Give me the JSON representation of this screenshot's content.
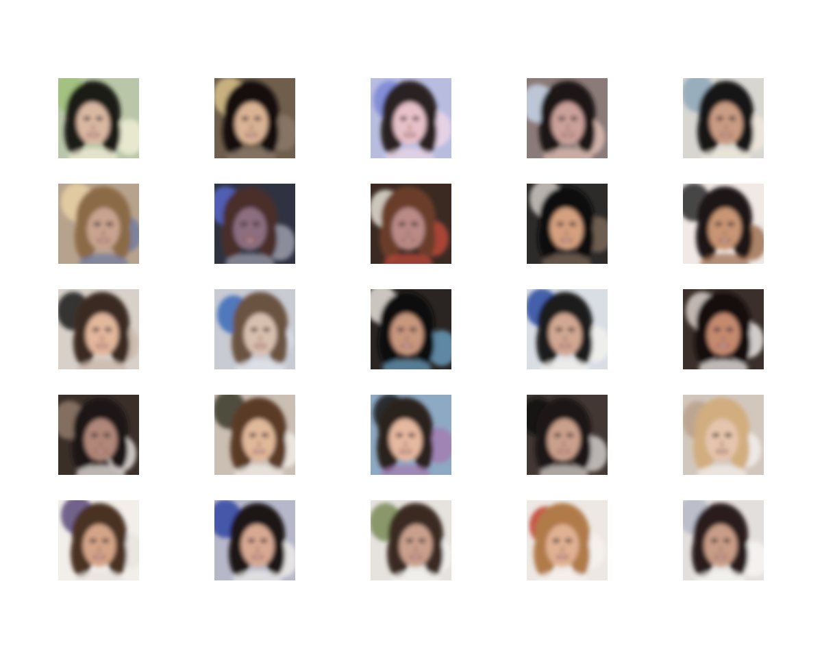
{
  "grid": {
    "rows": 5,
    "columns": 5,
    "tiles": [
      {
        "bg": "#b9c7a8",
        "hair": "#1c1a16",
        "skin": "#d9b8a2",
        "accent": "#9fbf7a",
        "accent2": "#f3f0d8"
      },
      {
        "bg": "#6e5e4b",
        "hair": "#121110",
        "skin": "#d9b394",
        "accent": "#d7c08a",
        "accent2": "#8c7b6b"
      },
      {
        "bg": "#b8bde0",
        "hair": "#2a2424",
        "skin": "#e6c1c9",
        "accent": "#7a86d6",
        "accent2": "#f0d7e6"
      },
      {
        "bg": "#8a7a78",
        "hair": "#1e1817",
        "skin": "#caa09a",
        "accent": "#c6d3e6",
        "accent2": "#e2c0b6"
      },
      {
        "bg": "#d7d6d1",
        "hair": "#151515",
        "skin": "#c99c83",
        "accent": "#8ea7b8",
        "accent2": "#f1e9dc"
      },
      {
        "bg": "#b7a38d",
        "hair": "#8b6a46",
        "skin": "#c8a38f",
        "accent": "#e9d0a4",
        "accent2": "#6d7aa3"
      },
      {
        "bg": "#2f3341",
        "hair": "#4a2f2c",
        "skin": "#8c6e7f",
        "accent": "#5566c8",
        "accent2": "#a2a4b2"
      },
      {
        "bg": "#3a2a22",
        "hair": "#6b3d2b",
        "skin": "#b98a86",
        "accent": "#e6e2d6",
        "accent2": "#c44a3c"
      },
      {
        "bg": "#2d2a2a",
        "hair": "#0e0c0c",
        "skin": "#d4a07f",
        "accent": "#cfcac4",
        "accent2": "#7d6a5a"
      },
      {
        "bg": "#f0e9e6",
        "hair": "#1b1413",
        "skin": "#c89575",
        "accent": "#2a2a2a",
        "accent2": "#9a6a4a"
      },
      {
        "bg": "#d8d1ca",
        "hair": "#3b2a20",
        "skin": "#e2b79c",
        "accent": "#1a1614",
        "accent2": "#c9b7a9"
      },
      {
        "bg": "#c9cbd3",
        "hair": "#6b5340",
        "skin": "#d8c0b0",
        "accent": "#3b6ab8",
        "accent2": "#e6e7ee"
      },
      {
        "bg": "#2a2523",
        "hair": "#0f0c0b",
        "skin": "#c7977e",
        "accent": "#e7e2da",
        "accent2": "#6aa0c3"
      },
      {
        "bg": "#d9dde4",
        "hair": "#1e1b1b",
        "skin": "#d1a893",
        "accent": "#2b4aa0",
        "accent2": "#f4f2ee"
      },
      {
        "bg": "#3a2f2b",
        "hair": "#120f0e",
        "skin": "#c48a6f",
        "accent": "#d8cfc9",
        "accent2": "#f6f4f2"
      },
      {
        "bg": "#3a2e29",
        "hair": "#1a1412",
        "skin": "#b08779",
        "accent": "#8f7a6a",
        "accent2": "#f1eeeb"
      },
      {
        "bg": "#cbbfb3",
        "hair": "#5a3b25",
        "skin": "#e0b89a",
        "accent": "#3b3a2a",
        "accent2": "#f2efe9"
      },
      {
        "bg": "#8ea9c4",
        "hair": "#2a201b",
        "skin": "#e5b89f",
        "accent": "#1a1a1a",
        "accent2": "#a47bb0"
      },
      {
        "bg": "#423733",
        "hair": "#1a1515",
        "skin": "#c9a08c",
        "accent": "#0d0c0c",
        "accent2": "#d8d5d2"
      },
      {
        "bg": "#d2c7bd",
        "hair": "#d1ad7f",
        "skin": "#e5c5ad",
        "accent": "#b9a08a",
        "accent2": "#f4f1ee"
      },
      {
        "bg": "#f2efeb",
        "hair": "#4a3222",
        "skin": "#d4a488",
        "accent": "#5a4a7a",
        "accent2": "#e9e3de"
      },
      {
        "bg": "#b6b7c9",
        "hair": "#1b1614",
        "skin": "#d7a993",
        "accent": "#3347a3",
        "accent2": "#f0eeea"
      },
      {
        "bg": "#e6e3df",
        "hair": "#3a2a22",
        "skin": "#c9a08d",
        "accent": "#7a8a56",
        "accent2": "#f5f3f0"
      },
      {
        "bg": "#ede8e3",
        "hair": "#b17a4a",
        "skin": "#e0b193",
        "accent": "#c0392b",
        "accent2": "#f6f2ee"
      },
      {
        "bg": "#e3dfdc",
        "hair": "#2a1e1a",
        "skin": "#c89d87",
        "accent": "#b5b9c7",
        "accent2": "#f8f6f4"
      }
    ]
  }
}
